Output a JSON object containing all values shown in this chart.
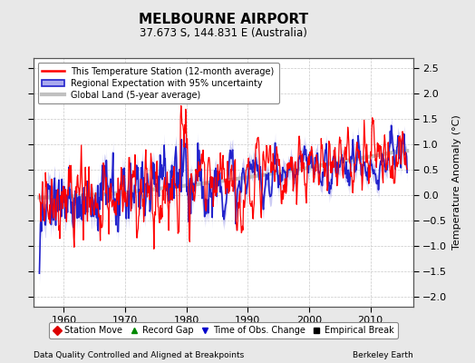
{
  "title": "MELBOURNE AIRPORT",
  "subtitle": "37.673 S, 144.831 E (Australia)",
  "ylabel": "Temperature Anomaly (°C)",
  "xlabel_left": "Data Quality Controlled and Aligned at Breakpoints",
  "xlabel_right": "Berkeley Earth",
  "ylim": [
    -2.2,
    2.7
  ],
  "xlim": [
    1955,
    2017
  ],
  "yticks": [
    -2,
    -1.5,
    -1,
    -0.5,
    0,
    0.5,
    1,
    1.5,
    2,
    2.5
  ],
  "xticks": [
    1960,
    1970,
    1980,
    1990,
    2000,
    2010
  ],
  "bg_color": "#e8e8e8",
  "plot_bg_color": "#ffffff",
  "grid_color": "#c8c8c8",
  "station_color": "#ff0000",
  "regional_color": "#2222cc",
  "regional_fill": "#aaaaee",
  "global_color": "#c0c0c0",
  "legend_items": [
    "This Temperature Station (12-month average)",
    "Regional Expectation with 95% uncertainty",
    "Global Land (5-year average)"
  ],
  "bottom_legend": [
    {
      "label": "Station Move",
      "color": "#dd0000",
      "marker": "D"
    },
    {
      "label": "Record Gap",
      "color": "#008800",
      "marker": "^"
    },
    {
      "label": "Time of Obs. Change",
      "color": "#0000cc",
      "marker": "v"
    },
    {
      "label": "Empirical Break",
      "color": "#000000",
      "marker": "s"
    }
  ]
}
